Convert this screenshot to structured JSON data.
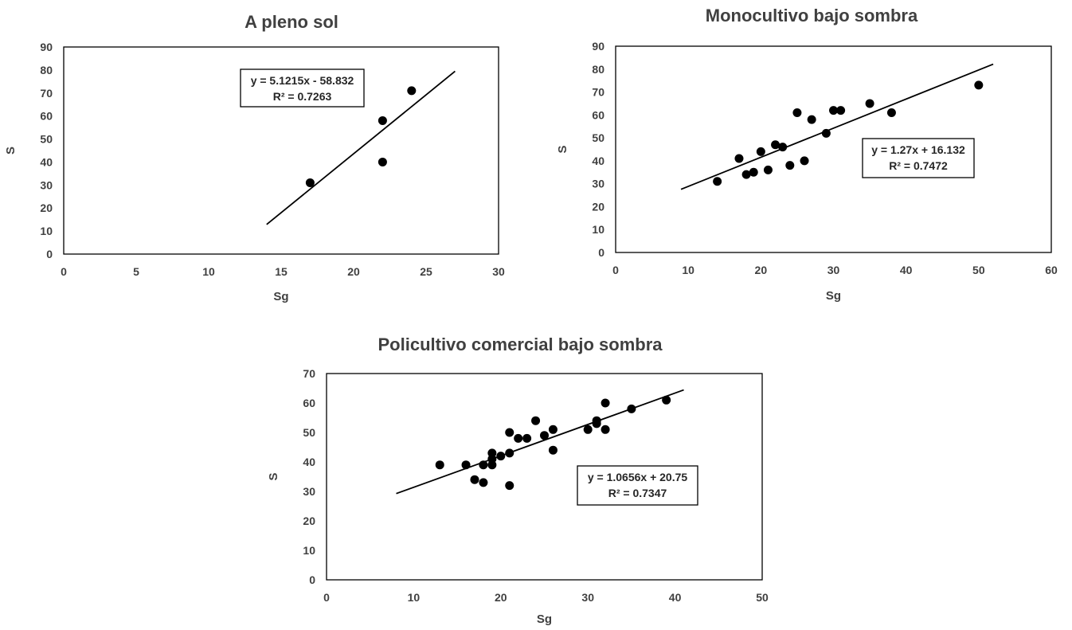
{
  "chart_data": [
    {
      "type": "scatter",
      "title": "A pleno sol",
      "xlabel": "Sg",
      "ylabel": "S",
      "xlim": [
        0,
        30
      ],
      "ylim": [
        0,
        90
      ],
      "xticks": [
        0,
        5,
        10,
        15,
        20,
        25,
        30
      ],
      "yticks": [
        0,
        10,
        20,
        30,
        40,
        50,
        60,
        70,
        80,
        90
      ],
      "grid": false,
      "points": [
        {
          "x": 17,
          "y": 31
        },
        {
          "x": 22,
          "y": 58
        },
        {
          "x": 22,
          "y": 40
        },
        {
          "x": 24,
          "y": 71
        }
      ],
      "trendline": {
        "slope": 5.1215,
        "intercept": -58.832,
        "x_range": [
          14,
          27
        ]
      },
      "equation": "y = 5.1215x - 58.832",
      "r_squared": "R² = 0.7263"
    },
    {
      "type": "scatter",
      "title": "Monocultivo bajo sombra",
      "xlabel": "Sg",
      "ylabel": "S",
      "xlim": [
        0,
        60
      ],
      "ylim": [
        0,
        90
      ],
      "xticks": [
        0,
        10,
        20,
        30,
        40,
        50,
        60
      ],
      "yticks": [
        0,
        10,
        20,
        30,
        40,
        50,
        60,
        70,
        80,
        90
      ],
      "grid": false,
      "points": [
        {
          "x": 14,
          "y": 31
        },
        {
          "x": 17,
          "y": 41
        },
        {
          "x": 18,
          "y": 34
        },
        {
          "x": 19,
          "y": 35
        },
        {
          "x": 20,
          "y": 44
        },
        {
          "x": 21,
          "y": 36
        },
        {
          "x": 22,
          "y": 47
        },
        {
          "x": 23,
          "y": 46
        },
        {
          "x": 24,
          "y": 38
        },
        {
          "x": 25,
          "y": 61
        },
        {
          "x": 26,
          "y": 40
        },
        {
          "x": 27,
          "y": 58
        },
        {
          "x": 29,
          "y": 52
        },
        {
          "x": 30,
          "y": 62
        },
        {
          "x": 31,
          "y": 62
        },
        {
          "x": 35,
          "y": 65
        },
        {
          "x": 38,
          "y": 61
        },
        {
          "x": 50,
          "y": 73
        }
      ],
      "trendline": {
        "slope": 1.27,
        "intercept": 16.132,
        "x_range": [
          9,
          52
        ]
      },
      "equation": "y = 1.27x + 16.132",
      "r_squared": "R² = 0.7472"
    },
    {
      "type": "scatter",
      "title": "Policultivo comercial bajo sombra",
      "xlabel": "Sg",
      "ylabel": "S",
      "xlim": [
        0,
        50
      ],
      "ylim": [
        0,
        70
      ],
      "xticks": [
        0,
        10,
        20,
        30,
        40,
        50
      ],
      "yticks": [
        0,
        10,
        20,
        30,
        40,
        50,
        60,
        70
      ],
      "grid": false,
      "points": [
        {
          "x": 13,
          "y": 39
        },
        {
          "x": 16,
          "y": 39
        },
        {
          "x": 17,
          "y": 34
        },
        {
          "x": 18,
          "y": 33
        },
        {
          "x": 18,
          "y": 39
        },
        {
          "x": 19,
          "y": 39
        },
        {
          "x": 19,
          "y": 41
        },
        {
          "x": 19,
          "y": 43
        },
        {
          "x": 20,
          "y": 42
        },
        {
          "x": 21,
          "y": 43
        },
        {
          "x": 21,
          "y": 50
        },
        {
          "x": 21,
          "y": 32
        },
        {
          "x": 22,
          "y": 48
        },
        {
          "x": 23,
          "y": 48
        },
        {
          "x": 24,
          "y": 54
        },
        {
          "x": 25,
          "y": 49
        },
        {
          "x": 26,
          "y": 51
        },
        {
          "x": 26,
          "y": 44
        },
        {
          "x": 30,
          "y": 51
        },
        {
          "x": 31,
          "y": 53
        },
        {
          "x": 31,
          "y": 54
        },
        {
          "x": 32,
          "y": 60
        },
        {
          "x": 32,
          "y": 51
        },
        {
          "x": 35,
          "y": 58
        },
        {
          "x": 39,
          "y": 61
        }
      ],
      "trendline": {
        "slope": 1.0656,
        "intercept": 20.75,
        "x_range": [
          8,
          41
        ]
      },
      "equation": "y = 1.0656x + 20.75",
      "r_squared": "R² = 0.7347"
    }
  ]
}
